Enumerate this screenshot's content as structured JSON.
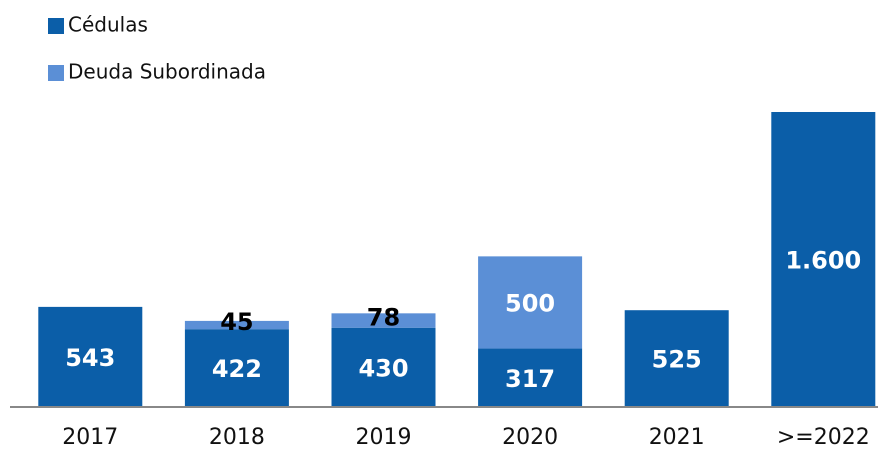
{
  "chart_data": {
    "type": "stacked_bar",
    "categories": [
      "2017",
      "2018",
      "2019",
      "2020",
      "2021",
      ">=2022"
    ],
    "series": [
      {
        "name": "Cédulas",
        "color": "#0b5ea8",
        "values": [
          543,
          422,
          430,
          317,
          525,
          1600
        ],
        "value_labels": [
          "543",
          "422",
          "430",
          "317",
          "525",
          "1.600"
        ]
      },
      {
        "name": "Deuda Subordinada",
        "color": "#5b8fd6",
        "values": [
          null,
          45,
          78,
          500,
          null,
          null
        ]
      }
    ]
  }
}
